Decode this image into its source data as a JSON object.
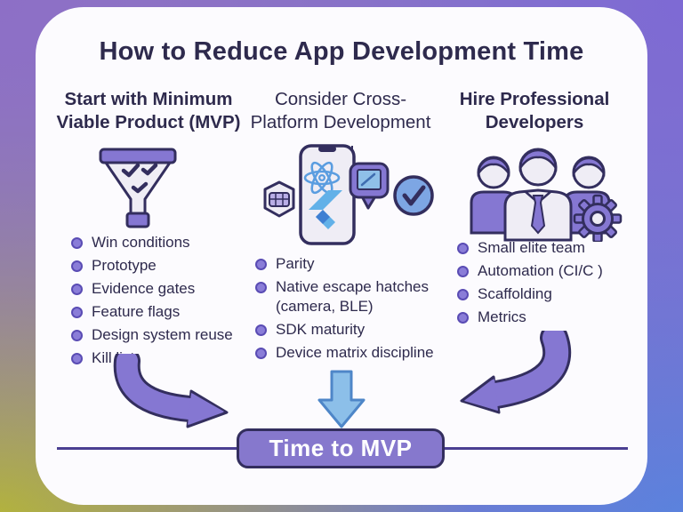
{
  "title": "How to Reduce App Development Time",
  "columns": [
    {
      "heading": "Start with Minimum Viable Product (MVP)",
      "icon": "funnel-checklist-icon",
      "items": [
        "Win conditions",
        "Prototype",
        "Evidence gates",
        "Feature flags",
        "Design system reuse",
        "Kill list"
      ]
    },
    {
      "heading": "Consider Cross-Platform Development",
      "icon": "phone-react-flutter-icon",
      "items": [
        "Parity",
        "Native escape hatches (camera, BLE)",
        "SDK maturity",
        "Device matrix discipline"
      ]
    },
    {
      "heading": "Hire Professional Developers",
      "icon": "team-with-gear-icon",
      "items": [
        "Small elite team",
        "Automation (CI/C )",
        "Scaffolding",
        "Metrics"
      ]
    }
  ],
  "footer": {
    "banner_label": "Time to MVP"
  },
  "colors": {
    "accent_purple": "#8577d2",
    "accent_purple_dark": "#4a3f92",
    "outline_navy": "#332e5e",
    "text_dark": "#2e2a4d",
    "card_bg": "#fcfbfe",
    "banner_fill": "#8678cd",
    "bullet_fill": "#8a7dd8",
    "bullet_ring": "#5a4cb4",
    "arrow_blue": "#8cbfe9",
    "arrow_blue_border": "#4e86c8",
    "react_blue": "#5a9de0",
    "flutter_blue_light": "#62b1e8",
    "flutter_blue_dark": "#3f7fd2",
    "check_circle_blue": "#7da6e4",
    "icon_fill_light": "#efedf5",
    "bg_top_left": "#8d6fc6",
    "bg_top_right": "#7e6ad4",
    "bg_bottom_left": "#b2b23e",
    "bg_bottom_right": "#5b82dd"
  }
}
